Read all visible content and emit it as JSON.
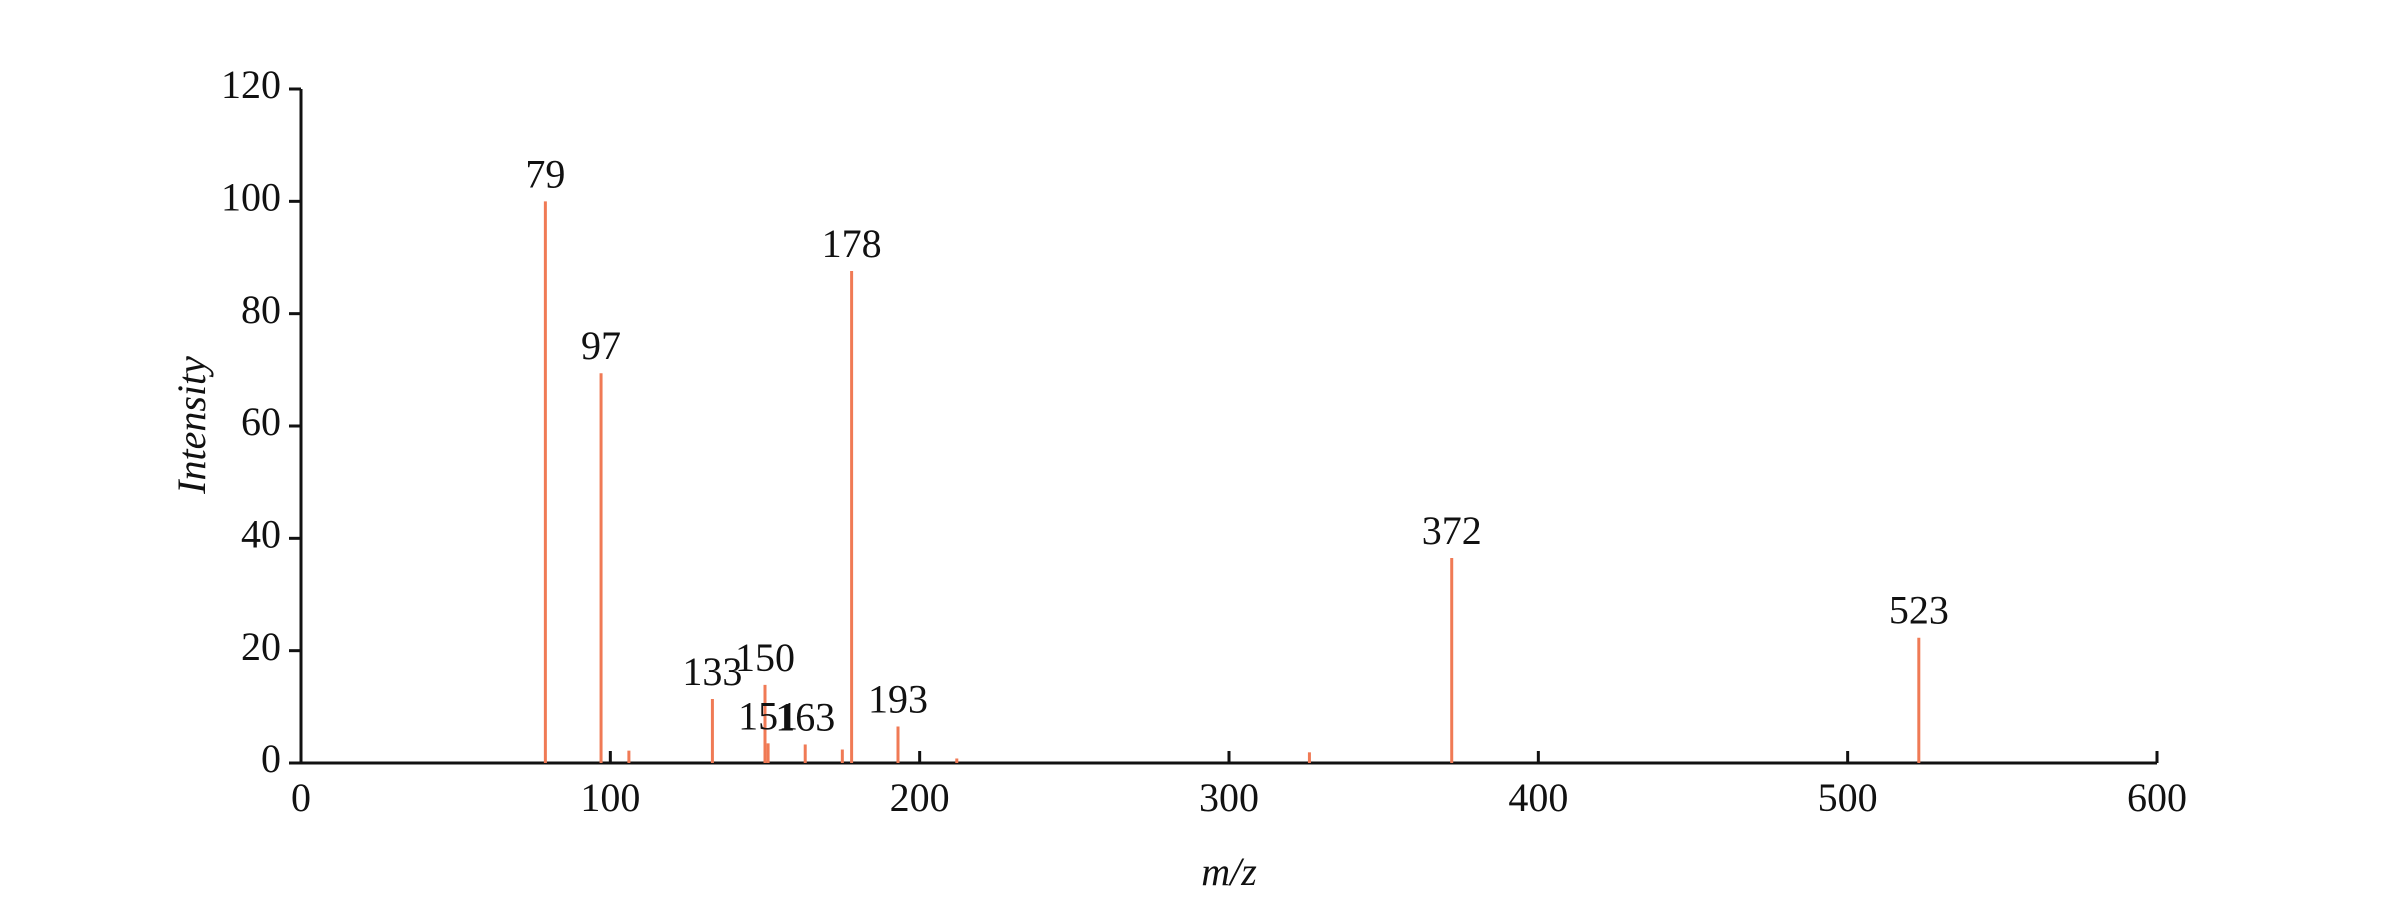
{
  "chart_data": {
    "type": "stem",
    "x_label": "m/z",
    "y_label": "Intensity",
    "x": [
      79,
      97,
      106,
      133,
      150,
      151,
      163,
      175,
      178,
      193,
      212,
      326,
      372,
      523
    ],
    "values": [
      100,
      69.4,
      2.2,
      11.4,
      13.9,
      3.5,
      3.3,
      2.4,
      87.6,
      6.5,
      0.8,
      1.9,
      36.5,
      22.3
    ],
    "peak_labels": [
      "79",
      "97",
      null,
      "133",
      "150",
      "151",
      "163",
      null,
      "178",
      "193",
      null,
      null,
      "372",
      "523"
    ],
    "color": "#f07a55",
    "xlim": [
      0,
      600
    ],
    "xticks": [
      0,
      100,
      200,
      300,
      400,
      500,
      600
    ],
    "ylim": [
      0,
      120
    ],
    "yticks": [
      0,
      20,
      40,
      60,
      80,
      100,
      120
    ],
    "grid": false
  }
}
